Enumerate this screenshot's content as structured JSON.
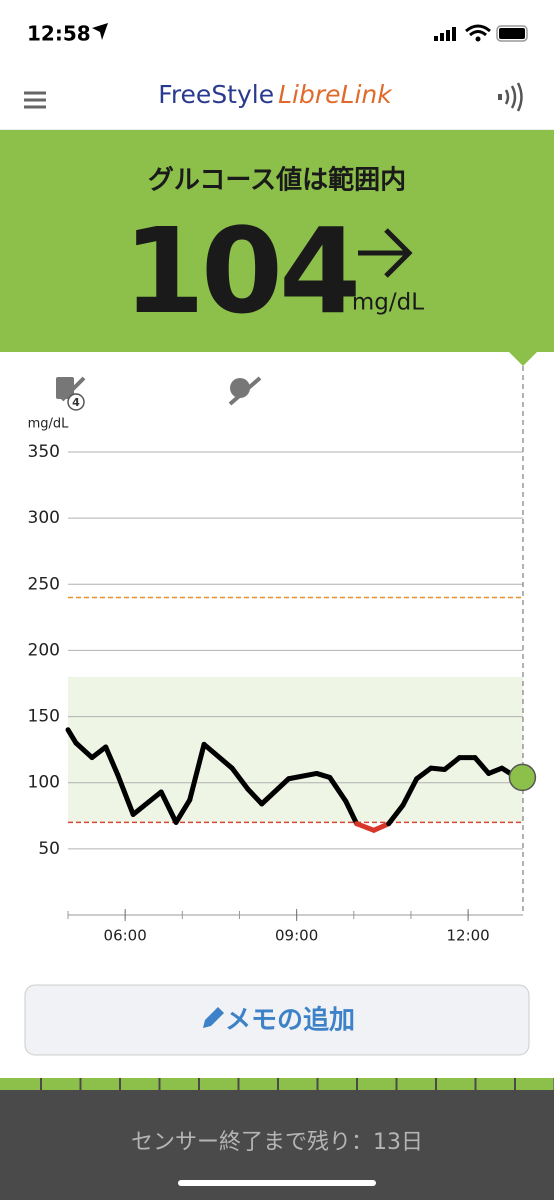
{
  "status_bar": {
    "time": "12:58"
  },
  "header": {
    "brand_1": "FreeStyle",
    "brand_2": "LibreLink"
  },
  "banner": {
    "status": "グルコース値は範囲内",
    "value": 104,
    "unit": "mg/dL"
  },
  "icons": {
    "note_count": "4"
  },
  "chart_data": {
    "type": "line",
    "y_label": "mg/dL",
    "x": [
      5.0,
      5.14,
      5.42,
      5.66,
      5.87,
      6.14,
      6.63,
      6.89,
      7.13,
      7.38,
      7.87,
      8.15,
      8.39,
      8.86,
      9.35,
      9.58,
      9.86,
      10.05,
      10.35,
      10.61,
      10.86,
      11.1,
      11.35,
      11.59,
      11.85,
      12.12,
      12.36,
      12.59,
      12.85,
      12.95
    ],
    "series": [
      {
        "name": "グルコース",
        "color": "#000000",
        "low_color": "#d9362b",
        "values": [
          140,
          130,
          119,
          127,
          106,
          76,
          93,
          70,
          87,
          129,
          111,
          95,
          84,
          103,
          107,
          104,
          86,
          69,
          64,
          69,
          83,
          103,
          111,
          110,
          119,
          119,
          107,
          111,
          104,
          104
        ]
      }
    ],
    "xlim": [
      5.0,
      12.96
    ],
    "xticks": [
      {
        "value": 6,
        "label": "06:00"
      },
      {
        "value": 9,
        "label": "09:00"
      },
      {
        "value": 12,
        "label": "12:00"
      }
    ],
    "ylim": [
      0,
      350
    ],
    "yticks": [
      50,
      100,
      150,
      200,
      250,
      300,
      350
    ],
    "grid": true,
    "target_range": [
      70,
      180
    ],
    "target_color": "#eef5e4",
    "low_limit": 70,
    "low_limit_color": "#d9443b",
    "high_limit": 240,
    "high_limit_color": "#e8902c",
    "current_color": "#8cc04b"
  },
  "memo_button": {
    "label": "メモの追加"
  },
  "footer": {
    "sensor_text": "センサー終了まで残り：13日"
  }
}
